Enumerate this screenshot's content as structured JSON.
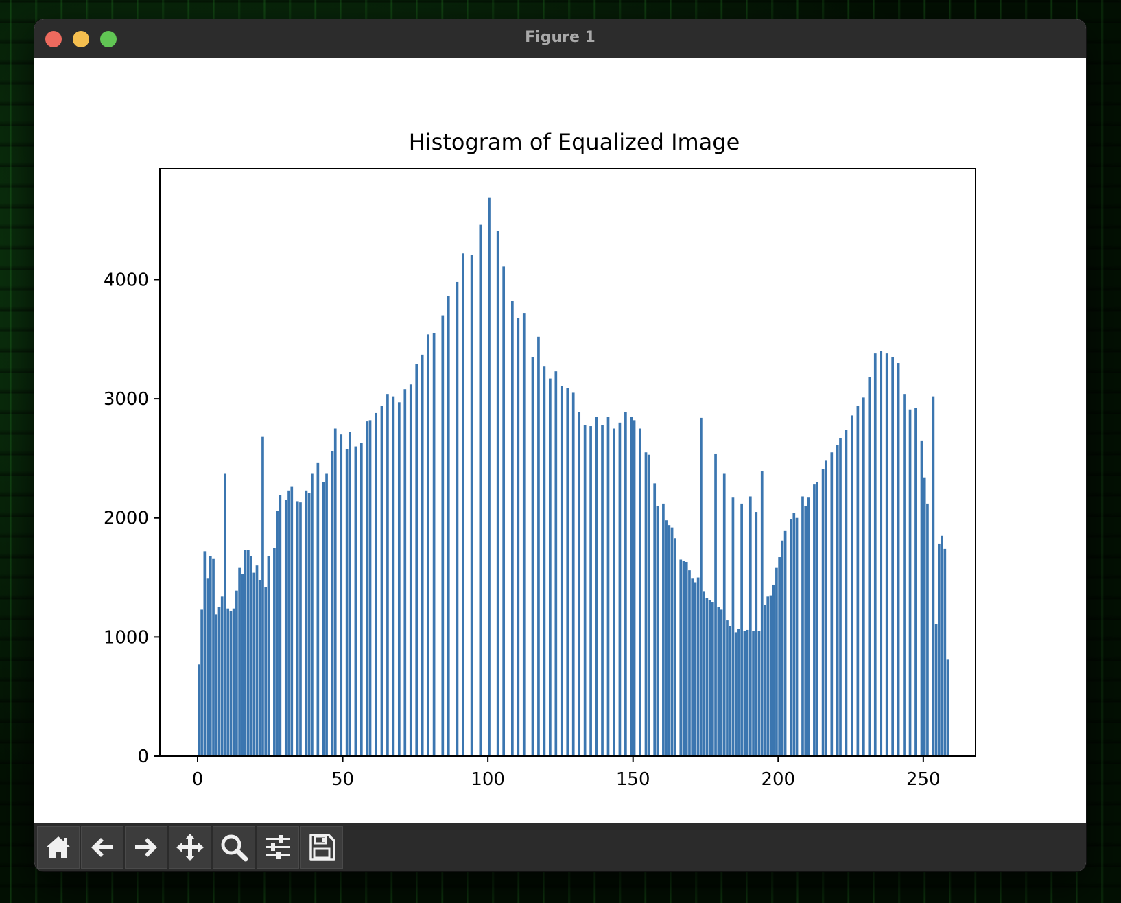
{
  "window": {
    "title": "Figure 1"
  },
  "toolbar": {
    "buttons": [
      {
        "name": "home-icon"
      },
      {
        "name": "back-arrow-icon"
      },
      {
        "name": "forward-arrow-icon"
      },
      {
        "name": "pan-move-icon"
      },
      {
        "name": "zoom-magnifier-icon"
      },
      {
        "name": "configure-subplots-icon"
      },
      {
        "name": "save-floppy-icon"
      }
    ]
  },
  "colors": {
    "bar": "#3b76b0",
    "titlebar": "#2c2c2c",
    "toolbar": "#2b2b2b"
  },
  "chart_data": {
    "type": "bar",
    "title": "Histogram of Equalized Image",
    "xlabel": "",
    "ylabel": "",
    "xlim": [
      -13,
      268
    ],
    "ylim": [
      0,
      4930
    ],
    "xticks": [
      0,
      50,
      100,
      150,
      200,
      250
    ],
    "yticks": [
      0,
      1000,
      2000,
      3000,
      4000
    ],
    "grid": false,
    "values": [
      770,
      1230,
      1720,
      1490,
      1680,
      1660,
      1190,
      1250,
      1340,
      2370,
      1240,
      1220,
      1240,
      1390,
      1580,
      1530,
      1730,
      1730,
      1680,
      1540,
      1600,
      1480,
      2680,
      1420,
      1680,
      0,
      1750,
      2060,
      2190,
      0,
      2150,
      2230,
      2260,
      0,
      2140,
      2130,
      0,
      2230,
      2210,
      2370,
      0,
      2460,
      0,
      2300,
      2370,
      0,
      2560,
      2750,
      0,
      2700,
      0,
      2580,
      2720,
      0,
      2600,
      0,
      2630,
      0,
      2810,
      2820,
      0,
      2880,
      0,
      2940,
      0,
      3040,
      0,
      3020,
      0,
      2970,
      0,
      3080,
      0,
      3120,
      0,
      3290,
      0,
      3370,
      0,
      3540,
      0,
      3550,
      0,
      0,
      3700,
      0,
      3860,
      0,
      0,
      3980,
      0,
      4220,
      0,
      0,
      4210,
      0,
      0,
      4460,
      0,
      0,
      4690,
      0,
      0,
      4410,
      0,
      4110,
      0,
      0,
      3820,
      0,
      3680,
      0,
      3720,
      0,
      0,
      3350,
      0,
      3520,
      0,
      3270,
      0,
      3170,
      0,
      3230,
      0,
      3110,
      0,
      3090,
      0,
      3050,
      0,
      2890,
      0,
      2780,
      0,
      2770,
      0,
      2850,
      0,
      2780,
      0,
      2850,
      0,
      2750,
      0,
      2800,
      0,
      2890,
      0,
      2850,
      2820,
      0,
      2750,
      0,
      2550,
      2530,
      0,
      2290,
      2100,
      0,
      2120,
      1980,
      1940,
      1920,
      1830,
      0,
      1650,
      1640,
      1630,
      1560,
      1490,
      1460,
      1500,
      2840,
      1380,
      1330,
      1310,
      1290,
      2540,
      1250,
      1230,
      2370,
      1140,
      1090,
      2170,
      1040,
      1070,
      2120,
      1050,
      1060,
      2180,
      1050,
      2050,
      1050,
      2390,
      1270,
      1340,
      1350,
      1440,
      1580,
      1670,
      1810,
      1890,
      0,
      1990,
      2040,
      2000,
      0,
      2180,
      2100,
      2170,
      0,
      2280,
      2300,
      0,
      2410,
      2480,
      0,
      2550,
      0,
      2610,
      2670,
      0,
      2740,
      0,
      2860,
      0,
      2940,
      0,
      3010,
      0,
      3180,
      0,
      3380,
      0,
      3400,
      0,
      3380,
      0,
      3350,
      0,
      3300,
      0,
      3040,
      0,
      2910,
      0,
      2920,
      0,
      2650,
      2340,
      2120,
      0,
      3020,
      1110,
      1780,
      1850,
      1740,
      810
    ]
  }
}
